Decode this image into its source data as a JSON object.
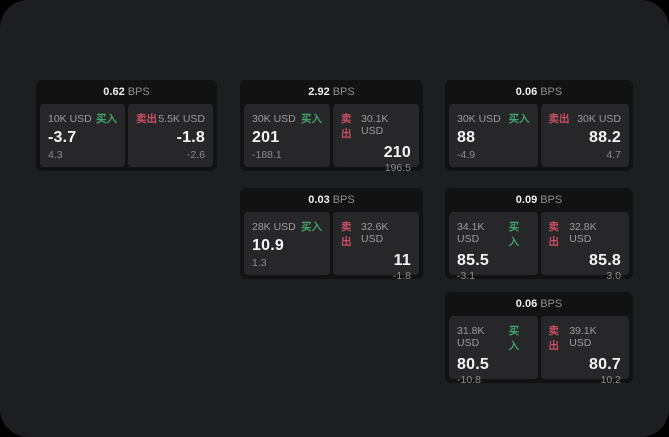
{
  "labels": {
    "buy": "买入",
    "sell": "卖出",
    "bps": "BPS"
  },
  "colors": {
    "background": "#000000",
    "surface": "#1d1e1f",
    "card": "#121212",
    "panel": "#272729",
    "buy_green": "#41a368",
    "sell_red": "#c94f63"
  },
  "cards": [
    {
      "bps": "0.62",
      "buy": {
        "size": "10K USD",
        "price": "-3.7",
        "delta": "4.3"
      },
      "sell": {
        "size": "5.5K USD",
        "price": "-1.8",
        "delta": "-2.6"
      }
    },
    {
      "bps": "2.92",
      "buy": {
        "size": "30K USD",
        "price": "201",
        "delta": "-188.1"
      },
      "sell": {
        "size": "30.1K USD",
        "price": "210",
        "delta": "196.5"
      }
    },
    {
      "bps": "0.06",
      "buy": {
        "size": "30K USD",
        "price": "88",
        "delta": "-4.9"
      },
      "sell": {
        "size": "30K USD",
        "price": "88.2",
        "delta": "4.7"
      }
    },
    {
      "bps": "0.03",
      "buy": {
        "size": "28K USD",
        "price": "10.9",
        "delta": "1.3"
      },
      "sell": {
        "size": "32.6K USD",
        "price": "11",
        "delta": "-1.8"
      }
    },
    {
      "bps": "0.09",
      "buy": {
        "size": "34.1K USD",
        "price": "85.5",
        "delta": "-3.1"
      },
      "sell": {
        "size": "32.8K USD",
        "price": "85.8",
        "delta": "3.0"
      }
    },
    {
      "bps": "0.06",
      "buy": {
        "size": "31.8K USD",
        "price": "80.5",
        "delta": "-10.8"
      },
      "sell": {
        "size": "39.1K USD",
        "price": "80.7",
        "delta": "10.2"
      }
    }
  ]
}
